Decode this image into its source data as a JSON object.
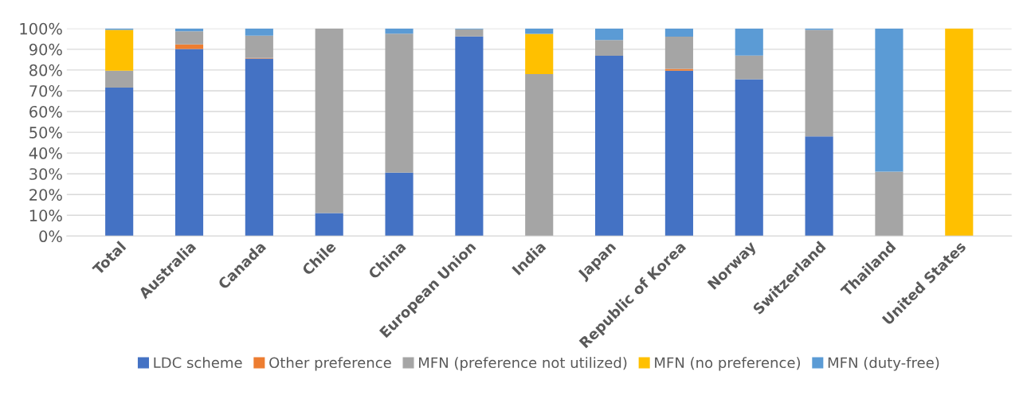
{
  "chart_data": {
    "type": "bar",
    "stacked": true,
    "categories": [
      "Total",
      "Australia",
      "Canada",
      "Chile",
      "China",
      "European Union",
      "India",
      "Japan",
      "Republic of Korea",
      "Norway",
      "Switzerland",
      "Thailand",
      "United States"
    ],
    "series": [
      {
        "name": "LDC scheme",
        "color": "#4472c4",
        "values": [
          71.5,
          90.1,
          85.5,
          11.1,
          30.6,
          96.2,
          0,
          86.9,
          79.7,
          75.5,
          48.0,
          0,
          0
        ]
      },
      {
        "name": "Other preference",
        "color": "#ed7d31",
        "values": [
          0,
          2.2,
          0.3,
          0,
          0,
          0,
          0,
          0,
          0.8,
          0,
          0,
          0,
          0
        ]
      },
      {
        "name": "MFN (preference not utilized)",
        "color": "#a5a5a5",
        "values": [
          8.2,
          6.4,
          10.8,
          88.9,
          66.9,
          3.4,
          78.0,
          7.5,
          15.6,
          11.5,
          51.3,
          31.0,
          0
        ]
      },
      {
        "name": "MFN (no preference)",
        "color": "#ffc000",
        "values": [
          19.6,
          0,
          0,
          0,
          0,
          0,
          19.4,
          0,
          0,
          0,
          0,
          0,
          100
        ]
      },
      {
        "name": "MFN (duty-free)",
        "color": "#5b9bd5",
        "values": [
          0.7,
          1.3,
          3.4,
          0,
          2.5,
          0.4,
          2.6,
          5.6,
          3.9,
          13.0,
          0.7,
          69.0,
          0
        ]
      }
    ],
    "ylim": [
      0,
      100
    ],
    "yticks": [
      {
        "value": 0,
        "label": "0%"
      },
      {
        "value": 10,
        "label": "10%"
      },
      {
        "value": 20,
        "label": "20%"
      },
      {
        "value": 30,
        "label": "30%"
      },
      {
        "value": 40,
        "label": "40%"
      },
      {
        "value": 50,
        "label": "50%"
      },
      {
        "value": 60,
        "label": "60%"
      },
      {
        "value": 70,
        "label": "70%"
      },
      {
        "value": 80,
        "label": "80%"
      },
      {
        "value": 90,
        "label": "90%"
      },
      {
        "value": 100,
        "label": "100%"
      }
    ],
    "grid": "y",
    "legend": "bottom"
  }
}
